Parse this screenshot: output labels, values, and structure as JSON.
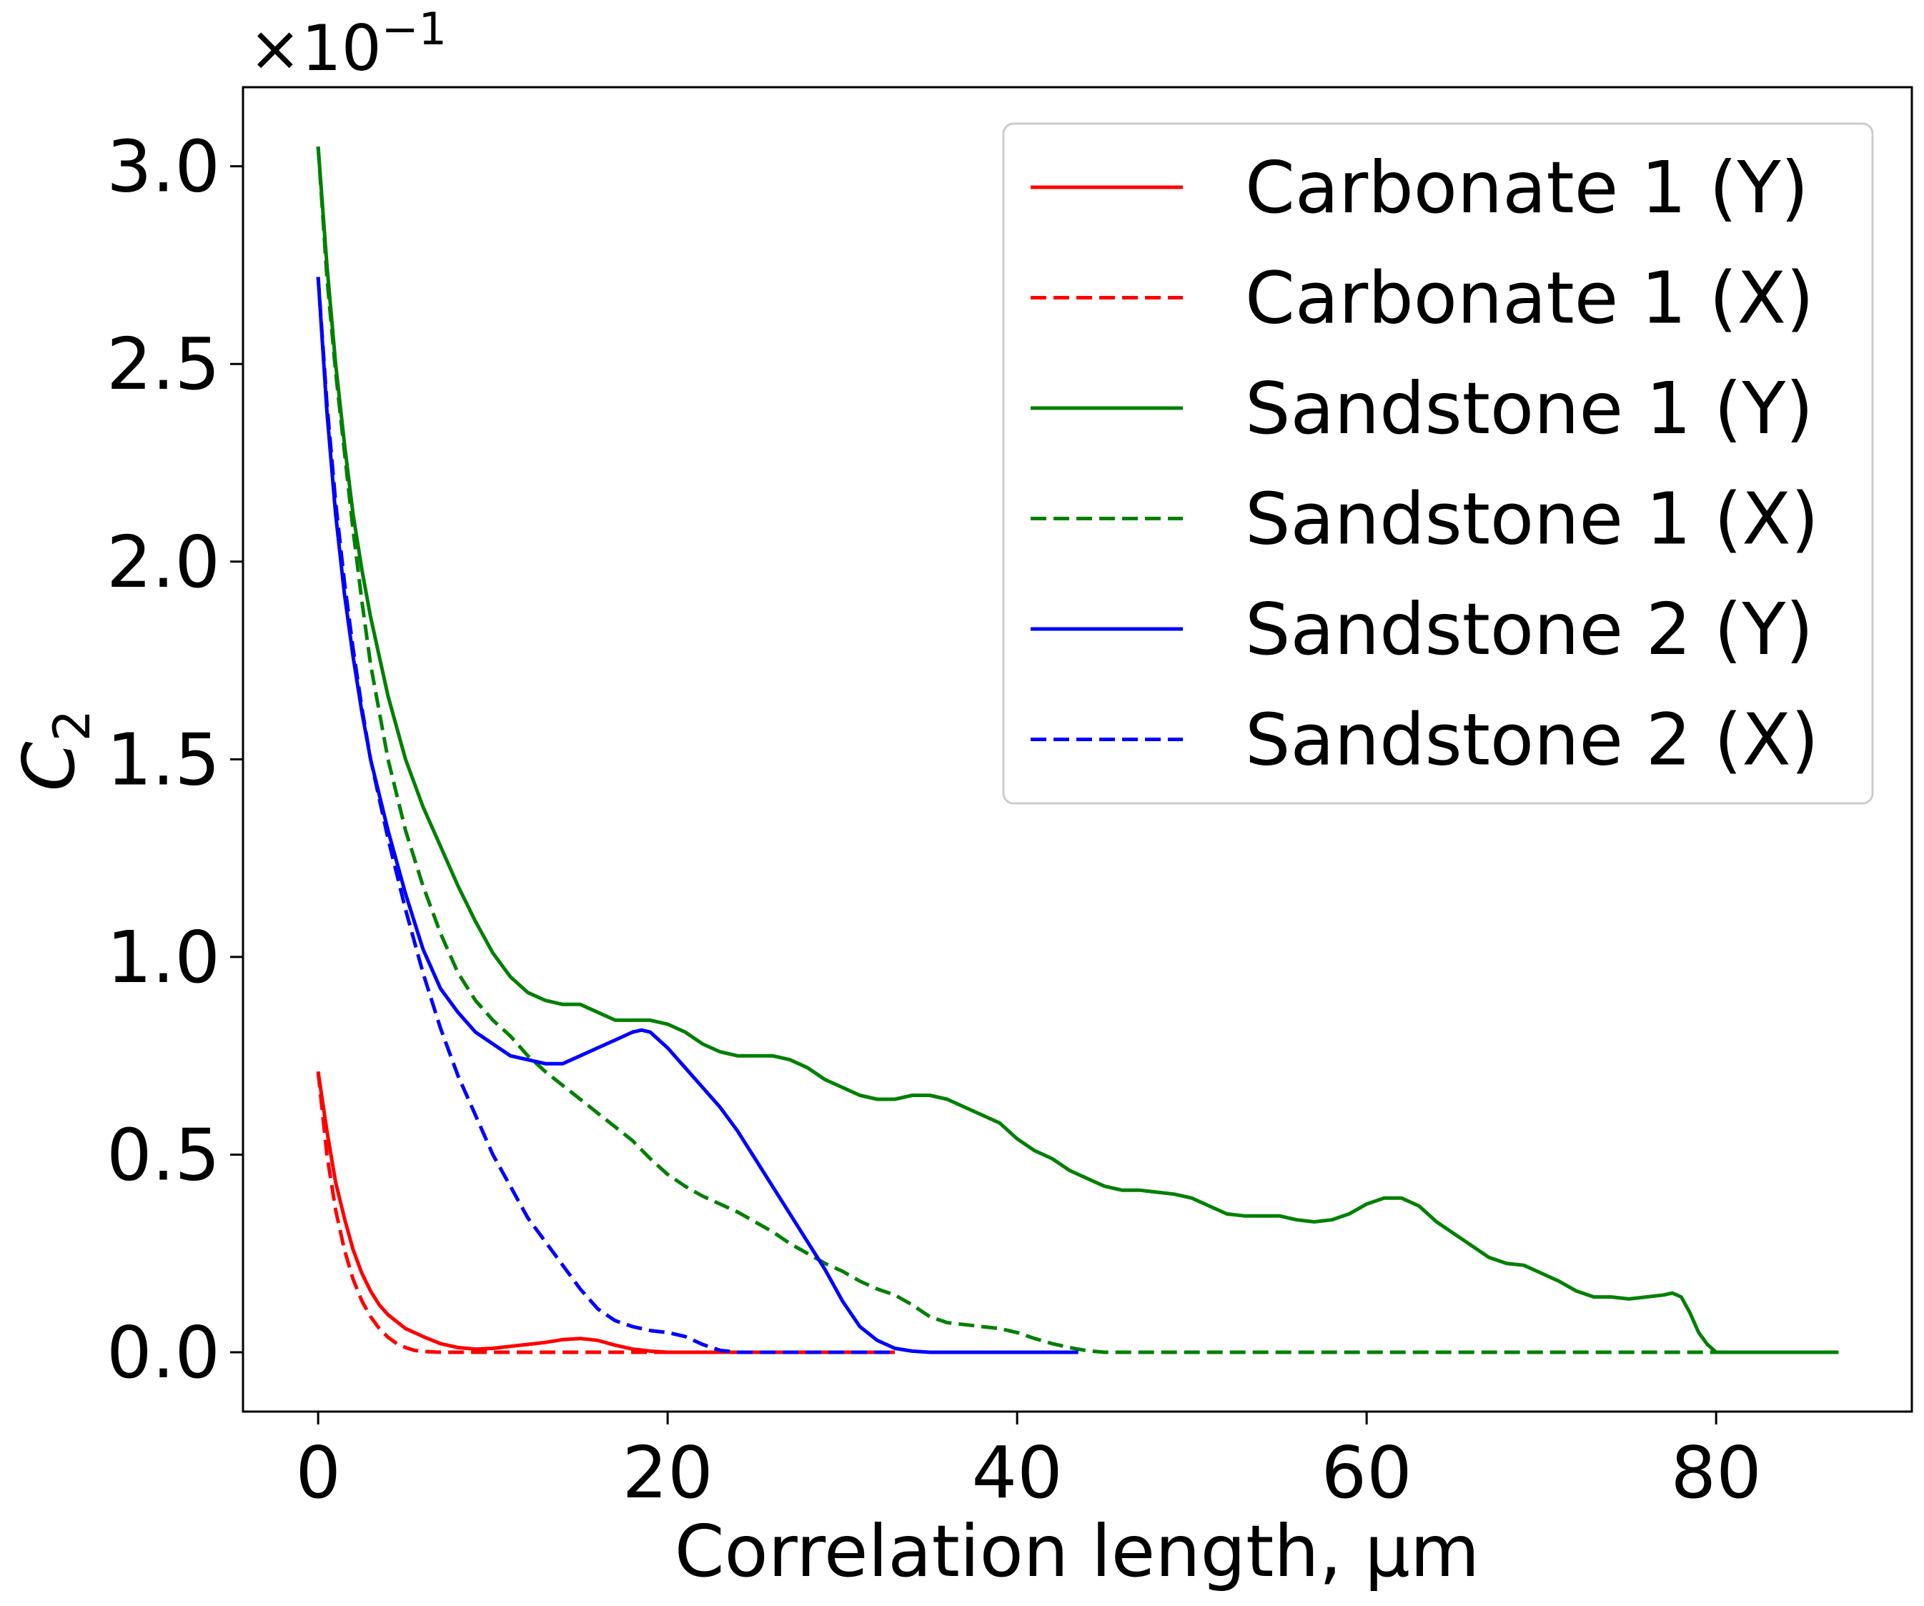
{
  "chart_data": {
    "type": "line",
    "title": "",
    "xlabel": "Correlation length, µm",
    "ylabel": "C",
    "ylabel_subscript": "2",
    "y_offset_label": {
      "base": "×10",
      "exponent": "−1"
    },
    "xlim": [
      -4.3,
      91.2
    ],
    "ylim": [
      -0.15,
      3.2
    ],
    "x_ticks": [
      0,
      20,
      40,
      60,
      80
    ],
    "x_tick_labels": [
      "0",
      "20",
      "40",
      "60",
      "80"
    ],
    "y_ticks": [
      0.0,
      0.5,
      1.0,
      1.5,
      2.0,
      2.5,
      3.0
    ],
    "y_tick_labels": [
      "0.0",
      "0.5",
      "1.0",
      "1.5",
      "2.0",
      "2.5",
      "3.0"
    ],
    "grid": false,
    "legend_position": "top-right",
    "series": [
      {
        "name": "Carbonate 1 (Y)",
        "color": "#ff0000",
        "dash": "solid",
        "x": [
          0,
          0.5,
          1,
          1.5,
          2,
          2.5,
          3,
          3.5,
          4,
          5,
          6,
          7,
          8,
          9,
          10,
          11,
          12,
          13,
          14,
          15,
          16,
          17,
          18,
          19,
          20,
          22,
          25,
          30,
          33
        ],
        "y": [
          0.71,
          0.56,
          0.43,
          0.34,
          0.26,
          0.2,
          0.155,
          0.12,
          0.095,
          0.06,
          0.04,
          0.022,
          0.012,
          0.008,
          0.01,
          0.015,
          0.02,
          0.025,
          0.032,
          0.035,
          0.03,
          0.018,
          0.008,
          0.003,
          0.0,
          0.0,
          0.0,
          0.0,
          0.0
        ]
      },
      {
        "name": "Carbonate 1 (X)",
        "color": "#ff0000",
        "dash": "dashed",
        "x": [
          0,
          0.5,
          1,
          1.5,
          2,
          2.5,
          3,
          3.5,
          4,
          4.5,
          5,
          5.5,
          6,
          7,
          8,
          10,
          15,
          20,
          22,
          25,
          30,
          33
        ],
        "y": [
          0.71,
          0.5,
          0.36,
          0.26,
          0.185,
          0.13,
          0.09,
          0.06,
          0.038,
          0.022,
          0.012,
          0.005,
          0.002,
          0.0,
          0.0,
          0.0,
          0.0,
          0.0,
          0.0,
          0.0,
          0.0,
          0.0
        ]
      },
      {
        "name": "Sandstone 1 (Y)",
        "color": "#008000",
        "dash": "solid",
        "x": [
          0,
          0.5,
          1,
          1.5,
          2,
          2.5,
          3,
          4,
          5,
          6,
          7,
          8,
          9,
          10,
          11,
          12,
          13,
          14,
          15,
          16,
          17,
          18,
          19,
          20,
          21,
          22,
          23,
          24,
          25,
          26,
          27,
          28,
          29,
          30,
          31,
          32,
          33,
          34,
          35,
          36,
          37,
          38,
          39,
          40,
          41,
          42,
          43,
          44,
          45,
          46,
          47,
          48,
          49,
          50,
          51,
          52,
          53,
          54,
          55,
          56,
          57,
          58,
          59,
          60,
          61,
          62,
          63,
          64,
          65,
          66,
          67,
          68,
          69,
          70,
          71,
          72,
          73,
          74,
          75,
          76,
          77,
          77.5,
          78,
          78.5,
          79,
          79.5,
          80,
          82,
          85,
          87
        ],
        "y": [
          3.05,
          2.75,
          2.5,
          2.3,
          2.12,
          1.98,
          1.86,
          1.66,
          1.5,
          1.38,
          1.28,
          1.18,
          1.09,
          1.01,
          0.95,
          0.91,
          0.89,
          0.88,
          0.88,
          0.86,
          0.84,
          0.84,
          0.84,
          0.83,
          0.81,
          0.78,
          0.76,
          0.75,
          0.75,
          0.75,
          0.74,
          0.72,
          0.69,
          0.67,
          0.65,
          0.64,
          0.64,
          0.65,
          0.65,
          0.64,
          0.62,
          0.6,
          0.58,
          0.54,
          0.51,
          0.49,
          0.46,
          0.44,
          0.42,
          0.41,
          0.41,
          0.405,
          0.4,
          0.39,
          0.37,
          0.35,
          0.345,
          0.345,
          0.345,
          0.335,
          0.33,
          0.335,
          0.35,
          0.375,
          0.39,
          0.39,
          0.37,
          0.33,
          0.3,
          0.27,
          0.24,
          0.225,
          0.22,
          0.2,
          0.18,
          0.155,
          0.14,
          0.14,
          0.135,
          0.14,
          0.145,
          0.15,
          0.14,
          0.1,
          0.05,
          0.02,
          0.0,
          0.0,
          0.0,
          0.0
        ]
      },
      {
        "name": "Sandstone 1 (X)",
        "color": "#008000",
        "dash": "dashed",
        "x": [
          0,
          0.5,
          1,
          1.5,
          2,
          2.5,
          3,
          4,
          5,
          6,
          7,
          8,
          9,
          10,
          11,
          12,
          13,
          14,
          15,
          16,
          17,
          18,
          19,
          20,
          21,
          22,
          23,
          24,
          25,
          26,
          27,
          28,
          29,
          30,
          31,
          32,
          33,
          34,
          35,
          36,
          37,
          38,
          39,
          40,
          41,
          42,
          43,
          44,
          45,
          50,
          60,
          70,
          80,
          87
        ],
        "y": [
          3.05,
          2.72,
          2.48,
          2.28,
          2.08,
          1.9,
          1.74,
          1.5,
          1.32,
          1.18,
          1.06,
          0.96,
          0.89,
          0.84,
          0.8,
          0.75,
          0.71,
          0.675,
          0.64,
          0.605,
          0.57,
          0.535,
          0.49,
          0.45,
          0.42,
          0.395,
          0.375,
          0.355,
          0.33,
          0.305,
          0.275,
          0.25,
          0.225,
          0.205,
          0.18,
          0.16,
          0.145,
          0.12,
          0.09,
          0.075,
          0.07,
          0.065,
          0.06,
          0.05,
          0.035,
          0.022,
          0.012,
          0.004,
          0.0,
          0.0,
          0.0,
          0.0,
          0.0,
          0.0
        ]
      },
      {
        "name": "Sandstone 2 (Y)",
        "color": "#0000ff",
        "dash": "solid",
        "x": [
          0,
          0.5,
          1,
          1.5,
          2,
          2.5,
          3,
          4,
          5,
          6,
          7,
          8,
          9,
          10,
          11,
          12,
          13,
          14,
          15,
          16,
          17,
          18,
          18.5,
          19,
          20,
          21,
          22,
          23,
          24,
          25,
          26,
          27,
          28,
          29,
          30,
          31,
          32,
          33,
          34,
          35,
          36,
          40,
          43.5
        ],
        "y": [
          2.72,
          2.38,
          2.12,
          1.92,
          1.76,
          1.62,
          1.5,
          1.32,
          1.16,
          1.02,
          0.92,
          0.86,
          0.81,
          0.78,
          0.75,
          0.74,
          0.73,
          0.73,
          0.75,
          0.77,
          0.79,
          0.81,
          0.815,
          0.81,
          0.77,
          0.72,
          0.67,
          0.62,
          0.56,
          0.49,
          0.42,
          0.35,
          0.28,
          0.21,
          0.13,
          0.065,
          0.03,
          0.01,
          0.003,
          0.0,
          0.0,
          0.0,
          0.0
        ]
      },
      {
        "name": "Sandstone 2 (X)",
        "color": "#0000ff",
        "dash": "dashed",
        "x": [
          0,
          0.5,
          1,
          1.5,
          2,
          2.5,
          3,
          4,
          5,
          6,
          7,
          8,
          9,
          10,
          11,
          12,
          13,
          14,
          15,
          16,
          17,
          18,
          19,
          20,
          21,
          22,
          23,
          24,
          25,
          28,
          30,
          33
        ],
        "y": [
          2.72,
          2.4,
          2.15,
          1.95,
          1.78,
          1.63,
          1.5,
          1.3,
          1.12,
          0.96,
          0.82,
          0.7,
          0.6,
          0.5,
          0.42,
          0.34,
          0.28,
          0.22,
          0.16,
          0.11,
          0.08,
          0.065,
          0.055,
          0.05,
          0.04,
          0.02,
          0.005,
          0.0,
          0.0,
          0.0,
          0.0,
          0.0
        ]
      }
    ]
  }
}
